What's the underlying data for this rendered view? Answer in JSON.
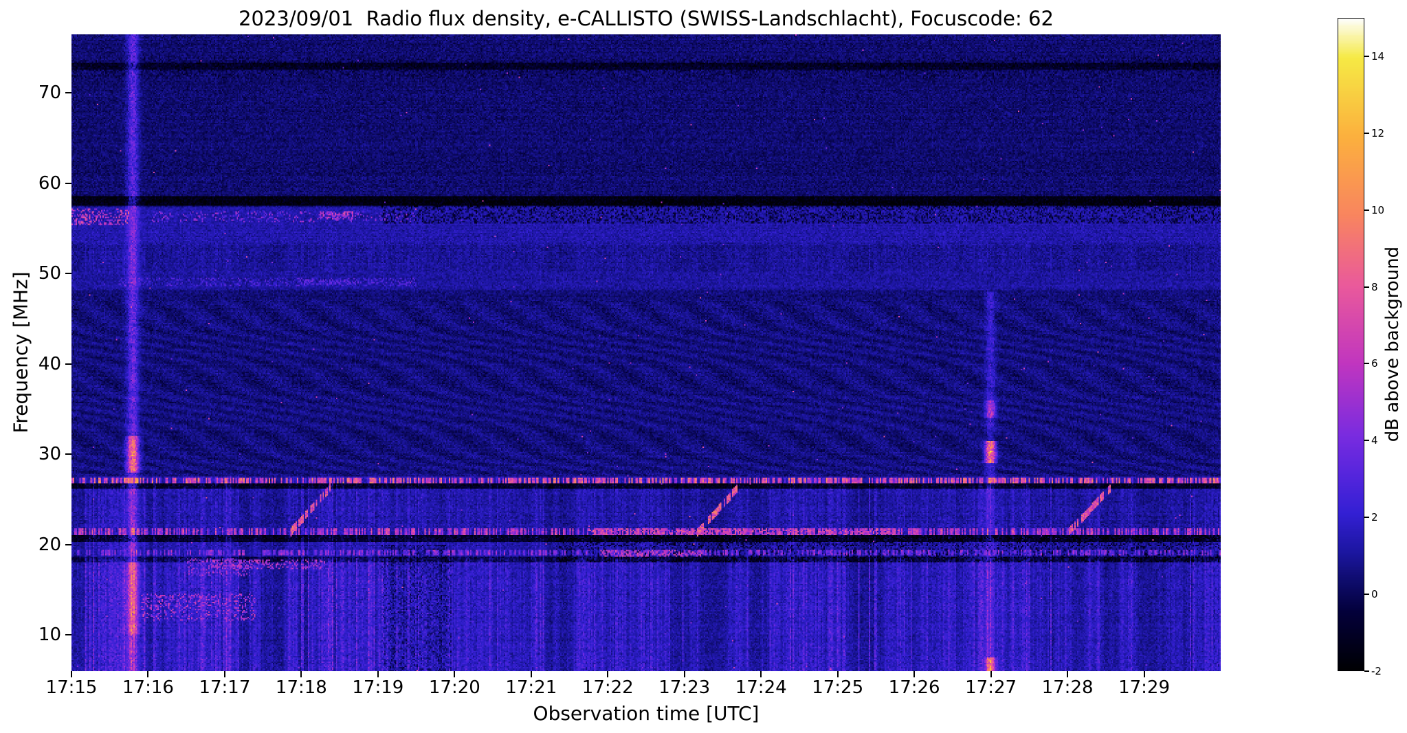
{
  "chart_data": {
    "type": "heatmap",
    "title": "2023/09/01  Radio flux density, e-CALLISTO (SWISS-Landschlacht), Focuscode: 62",
    "xlabel": "Observation time [UTC]",
    "ylabel": "Frequency [MHz]",
    "colorbar_label": "dB above background",
    "x_ticks": [
      "17:15",
      "17:16",
      "17:17",
      "17:18",
      "17:19",
      "17:20",
      "17:21",
      "17:22",
      "17:23",
      "17:24",
      "17:25",
      "17:26",
      "17:27",
      "17:28",
      "17:29"
    ],
    "x_span_minutes": 15,
    "y_ticks": [
      10,
      20,
      30,
      40,
      50,
      60,
      70
    ],
    "ylim": [
      6,
      76.5
    ],
    "clim": [
      -2,
      15
    ],
    "colorbar_ticks": [
      -2,
      0,
      2,
      4,
      6,
      8,
      10,
      12,
      14
    ],
    "grid": false,
    "colormap_stops": [
      [
        0.0,
        "#000004"
      ],
      [
        0.09,
        "#04013c"
      ],
      [
        0.13,
        "#0d0b66"
      ],
      [
        0.18,
        "#1c16a0"
      ],
      [
        0.24,
        "#3420d4"
      ],
      [
        0.3,
        "#5626dd"
      ],
      [
        0.36,
        "#7a2ce0"
      ],
      [
        0.47,
        "#c136c0"
      ],
      [
        0.59,
        "#ea5a9c"
      ],
      [
        0.7,
        "#f9865f"
      ],
      [
        0.82,
        "#fcb13e"
      ],
      [
        0.94,
        "#f6ea45"
      ],
      [
        1.0,
        "#fefefb"
      ]
    ],
    "features": {
      "speckle": {
        "p": 0.0006,
        "amp_min": 3,
        "amp_max": 8
      },
      "regions": [
        {
          "name": "low-band-striations",
          "f": [
            6,
            18.5
          ],
          "base": 0.9,
          "stripe_amp": 1.6
        },
        {
          "name": "band-18-27-texture",
          "f": [
            18.5,
            27.5
          ],
          "base": 0.8,
          "stripe_amp": 0.9
        },
        {
          "name": "mid-quiet-ripple",
          "f": [
            27.5,
            47
          ],
          "base": 0.55,
          "ripple_amp": 0.45
        },
        {
          "name": "band-49",
          "f": [
            48.2,
            50.2
          ],
          "base": 1.1
        },
        {
          "name": "band-51-53",
          "f": [
            50.2,
            53.5
          ],
          "base": 0.8,
          "stripe_amp": 0.4
        },
        {
          "name": "band-56",
          "f": [
            53.5,
            57.4
          ],
          "base": 1.3
        },
        {
          "name": "upper-quiet",
          "f": [
            58.5,
            76.5
          ],
          "base": 0.35
        }
      ],
      "dark_bands": [
        {
          "f": [
            57.5,
            58.6
          ],
          "depth": 2.2
        },
        {
          "f": [
            26.1,
            26.75
          ],
          "depth": 2.4
        },
        {
          "f": [
            20.25,
            21.0
          ],
          "depth": 2.2
        },
        {
          "f": [
            18.0,
            18.65
          ],
          "depth": 1.6
        },
        {
          "f": [
            72.6,
            73.4
          ],
          "depth": 1.2
        }
      ],
      "bright_lines": [
        {
          "f": [
            26.8,
            27.35
          ],
          "amp": 7.5,
          "dash": 0.55
        },
        {
          "f": [
            21.05,
            21.75
          ],
          "amp": 6.0,
          "dash": 0.5
        },
        {
          "f": [
            18.7,
            19.35
          ],
          "amp": 4.5,
          "dash": 0.45
        }
      ],
      "bright_patches": [
        {
          "t": [
            0.0,
            0.05
          ],
          "f": [
            55.5,
            57.2
          ],
          "amp": 7.0,
          "density": 0.35
        },
        {
          "t": [
            0.07,
            0.3
          ],
          "f": [
            55.8,
            57.0
          ],
          "amp": 5.0,
          "density": 0.18
        },
        {
          "t": [
            0.215,
            0.245
          ],
          "f": [
            56.0,
            57.0
          ],
          "amp": 6.5,
          "density": 0.6
        },
        {
          "t": [
            0.04,
            0.3
          ],
          "f": [
            48.6,
            49.6
          ],
          "amp": 3.2,
          "density": 0.25
        },
        {
          "t": [
            0.2,
            0.25
          ],
          "f": [
            48.8,
            49.4
          ],
          "amp": 3.8,
          "density": 0.5
        },
        {
          "t": [
            0.06,
            0.16
          ],
          "f": [
            11.5,
            14.5
          ],
          "amp": 6.0,
          "density": 0.25
        },
        {
          "t": [
            0.1,
            0.155
          ],
          "f": [
            16.5,
            18.4
          ],
          "amp": 5.5,
          "density": 0.3
        },
        {
          "t": [
            0.12,
            0.22
          ],
          "f": [
            17.2,
            18.3
          ],
          "amp": 6.0,
          "density": 0.35
        },
        {
          "t": [
            0.45,
            0.72
          ],
          "f": [
            21.05,
            21.75
          ],
          "amp": 7.5,
          "density": 0.5
        },
        {
          "t": [
            0.46,
            0.55
          ],
          "f": [
            18.6,
            19.3
          ],
          "amp": 7.0,
          "density": 0.5
        }
      ],
      "dark_texture": [
        {
          "t": [
            0.27,
            1.0
          ],
          "f": [
            55.6,
            58.2
          ],
          "depth": 1.8,
          "density": 0.35
        },
        {
          "t": [
            0.42,
            1.0
          ],
          "f": [
            18.0,
            21.0
          ],
          "depth": 1.8,
          "density": 0.3
        },
        {
          "t": [
            0.0,
            1.0
          ],
          "f": [
            71.8,
            74.0
          ],
          "depth": 0.9,
          "density": 0.25
        },
        {
          "t": [
            0.27,
            0.33
          ],
          "f": [
            6,
            20
          ],
          "depth": 1.2,
          "density": 0.5
        }
      ],
      "vertical_events": [
        {
          "t": 0.053,
          "sigma": 0.0035,
          "amp": 3.2,
          "f": [
            6,
            76.5
          ],
          "blobs": [
            {
              "f": [
                28,
                32
              ],
              "amp": 6.5
            },
            {
              "f": [
                10,
                18
              ],
              "amp": 3.5
            }
          ]
        },
        {
          "t": 0.8,
          "sigma": 0.003,
          "amp": 1.8,
          "f": [
            6,
            48
          ],
          "blobs": [
            {
              "f": [
                29,
                31.5
              ],
              "amp": 8.5
            },
            {
              "f": [
                34,
                36
              ],
              "amp": 4.0
            },
            {
              "f": [
                6,
                7.5
              ],
              "amp": 6.5
            }
          ]
        }
      ],
      "diagonal_sweeps": [
        {
          "t0": 0.19,
          "t1": 0.225,
          "f0": 21.3,
          "f1": 26.3,
          "amp": 7.5
        },
        {
          "t0": 0.545,
          "t1": 0.58,
          "f0": 21.3,
          "f1": 26.3,
          "amp": 7.5
        },
        {
          "t0": 0.868,
          "t1": 0.905,
          "f0": 21.3,
          "f1": 26.3,
          "amp": 7.5
        }
      ]
    }
  }
}
